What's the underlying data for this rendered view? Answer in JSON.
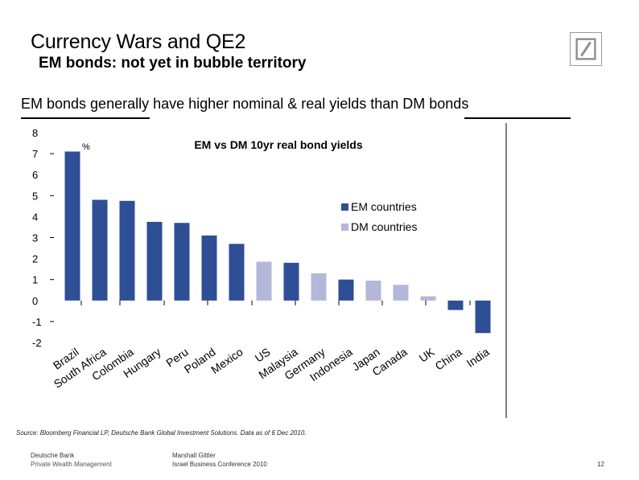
{
  "slide": {
    "title": "Currency Wars and QE2",
    "subtitle": "EM bonds: not yet in bubble territory",
    "headline": "EM bonds generally have higher nominal & real yields than DM bonds",
    "logo": "deutsche-bank-logo"
  },
  "chart_data": {
    "type": "bar",
    "title": "EM vs DM 10yr real bond yields",
    "unit_label": "%",
    "categories": [
      "Brazil",
      "South Africa",
      "Colombia",
      "Hungary",
      "Peru",
      "Poland",
      "Mexico",
      "US",
      "Malaysia",
      "Germany",
      "Indonesia",
      "Japan",
      "Canada",
      "UK",
      "China",
      "India"
    ],
    "values": [
      7.1,
      4.8,
      4.75,
      3.75,
      3.7,
      3.1,
      2.7,
      1.85,
      1.8,
      1.3,
      1.0,
      0.95,
      0.75,
      0.2,
      -0.45,
      -1.55
    ],
    "groups": [
      "EM",
      "EM",
      "EM",
      "EM",
      "EM",
      "EM",
      "EM",
      "DM",
      "EM",
      "DM",
      "EM",
      "DM",
      "DM",
      "DM",
      "EM",
      "EM"
    ],
    "legend": [
      {
        "key": "EM",
        "label": "EM countries",
        "color": "#2E4E96"
      },
      {
        "key": "DM",
        "label": "DM countries",
        "color": "#B3B8D9"
      }
    ],
    "ylim": [
      -2,
      8
    ],
    "yticks": [
      "8",
      "7",
      "6",
      "5",
      "4",
      "3",
      "2",
      "1",
      "0",
      "-1",
      "-2"
    ],
    "legend_position": "right"
  },
  "source": "Source: Bloomberg Financial LP, Deutsche Bank Global Investment Solutions.  Data as of  6 Dec 2010.",
  "footer": {
    "left_line1": "Deutsche Bank",
    "left_line2": "Private Wealth Management",
    "center_line1": "Marshall Gittler",
    "center_line2": "Israel Business Conference  2010",
    "page_number": "12"
  }
}
